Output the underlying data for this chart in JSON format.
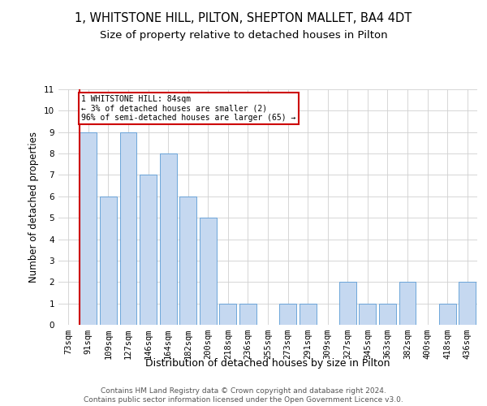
{
  "title": "1, WHITSTONE HILL, PILTON, SHEPTON MALLET, BA4 4DT",
  "subtitle": "Size of property relative to detached houses in Pilton",
  "xlabel": "Distribution of detached houses by size in Pilton",
  "ylabel": "Number of detached properties",
  "categories": [
    "73sqm",
    "91sqm",
    "109sqm",
    "127sqm",
    "146sqm",
    "164sqm",
    "182sqm",
    "200sqm",
    "218sqm",
    "236sqm",
    "255sqm",
    "273sqm",
    "291sqm",
    "309sqm",
    "327sqm",
    "345sqm",
    "363sqm",
    "382sqm",
    "400sqm",
    "418sqm",
    "436sqm"
  ],
  "values": [
    0,
    9,
    6,
    9,
    7,
    8,
    6,
    5,
    1,
    1,
    0,
    1,
    1,
    0,
    2,
    1,
    1,
    2,
    0,
    1,
    2
  ],
  "bar_color": "#c5d8f0",
  "bar_edge_color": "#5b9bd5",
  "annotation_line1": "1 WHITSTONE HILL: 84sqm",
  "annotation_line2": "← 3% of detached houses are smaller (2)",
  "annotation_line3": "96% of semi-detached houses are larger (65) →",
  "annotation_box_color": "#ffffff",
  "annotation_box_edge": "#cc0000",
  "vline_color": "#cc0000",
  "ylim": [
    0,
    11
  ],
  "yticks": [
    0,
    1,
    2,
    3,
    4,
    5,
    6,
    7,
    8,
    9,
    10,
    11
  ],
  "footer_line1": "Contains HM Land Registry data © Crown copyright and database right 2024.",
  "footer_line2": "Contains public sector information licensed under the Open Government Licence v3.0.",
  "background_color": "#ffffff",
  "grid_color": "#d0d0d0",
  "title_fontsize": 10.5,
  "subtitle_fontsize": 9.5,
  "axis_label_fontsize": 8.5,
  "tick_fontsize": 7.5,
  "footer_fontsize": 6.5
}
